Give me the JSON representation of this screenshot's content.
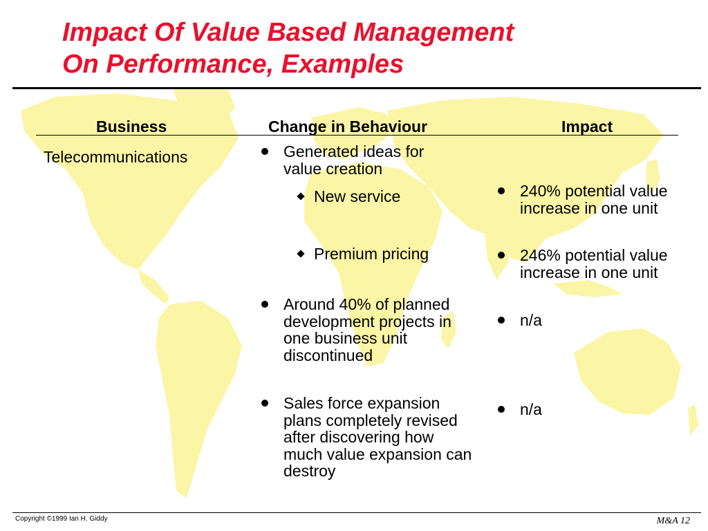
{
  "title": {
    "line1": "Impact Of Value Based Management",
    "line2": "On Performance, Examples",
    "color": "#e8112d"
  },
  "table": {
    "headers": [
      "Business",
      "Change in Behaviour",
      "Impact"
    ],
    "business": "Telecommunications",
    "changes": [
      "Generated ideas for value creation",
      "New service",
      "Premium pricing",
      "Around 40% of planned development projects in one business unit discontinued",
      "Sales force expansion plans completely revised after discovering how much value expansion can destroy"
    ],
    "impacts": [
      "240% potential value increase in one unit",
      "246% potential value increase in one unit",
      "n/a",
      "n/a"
    ]
  },
  "footer": {
    "copyright": "Copyright ©1999 Ian H. Giddy",
    "slide": "M&A 12"
  },
  "background": {
    "map_icon": "world-map-icon",
    "map_color": "#fbf5a6"
  }
}
